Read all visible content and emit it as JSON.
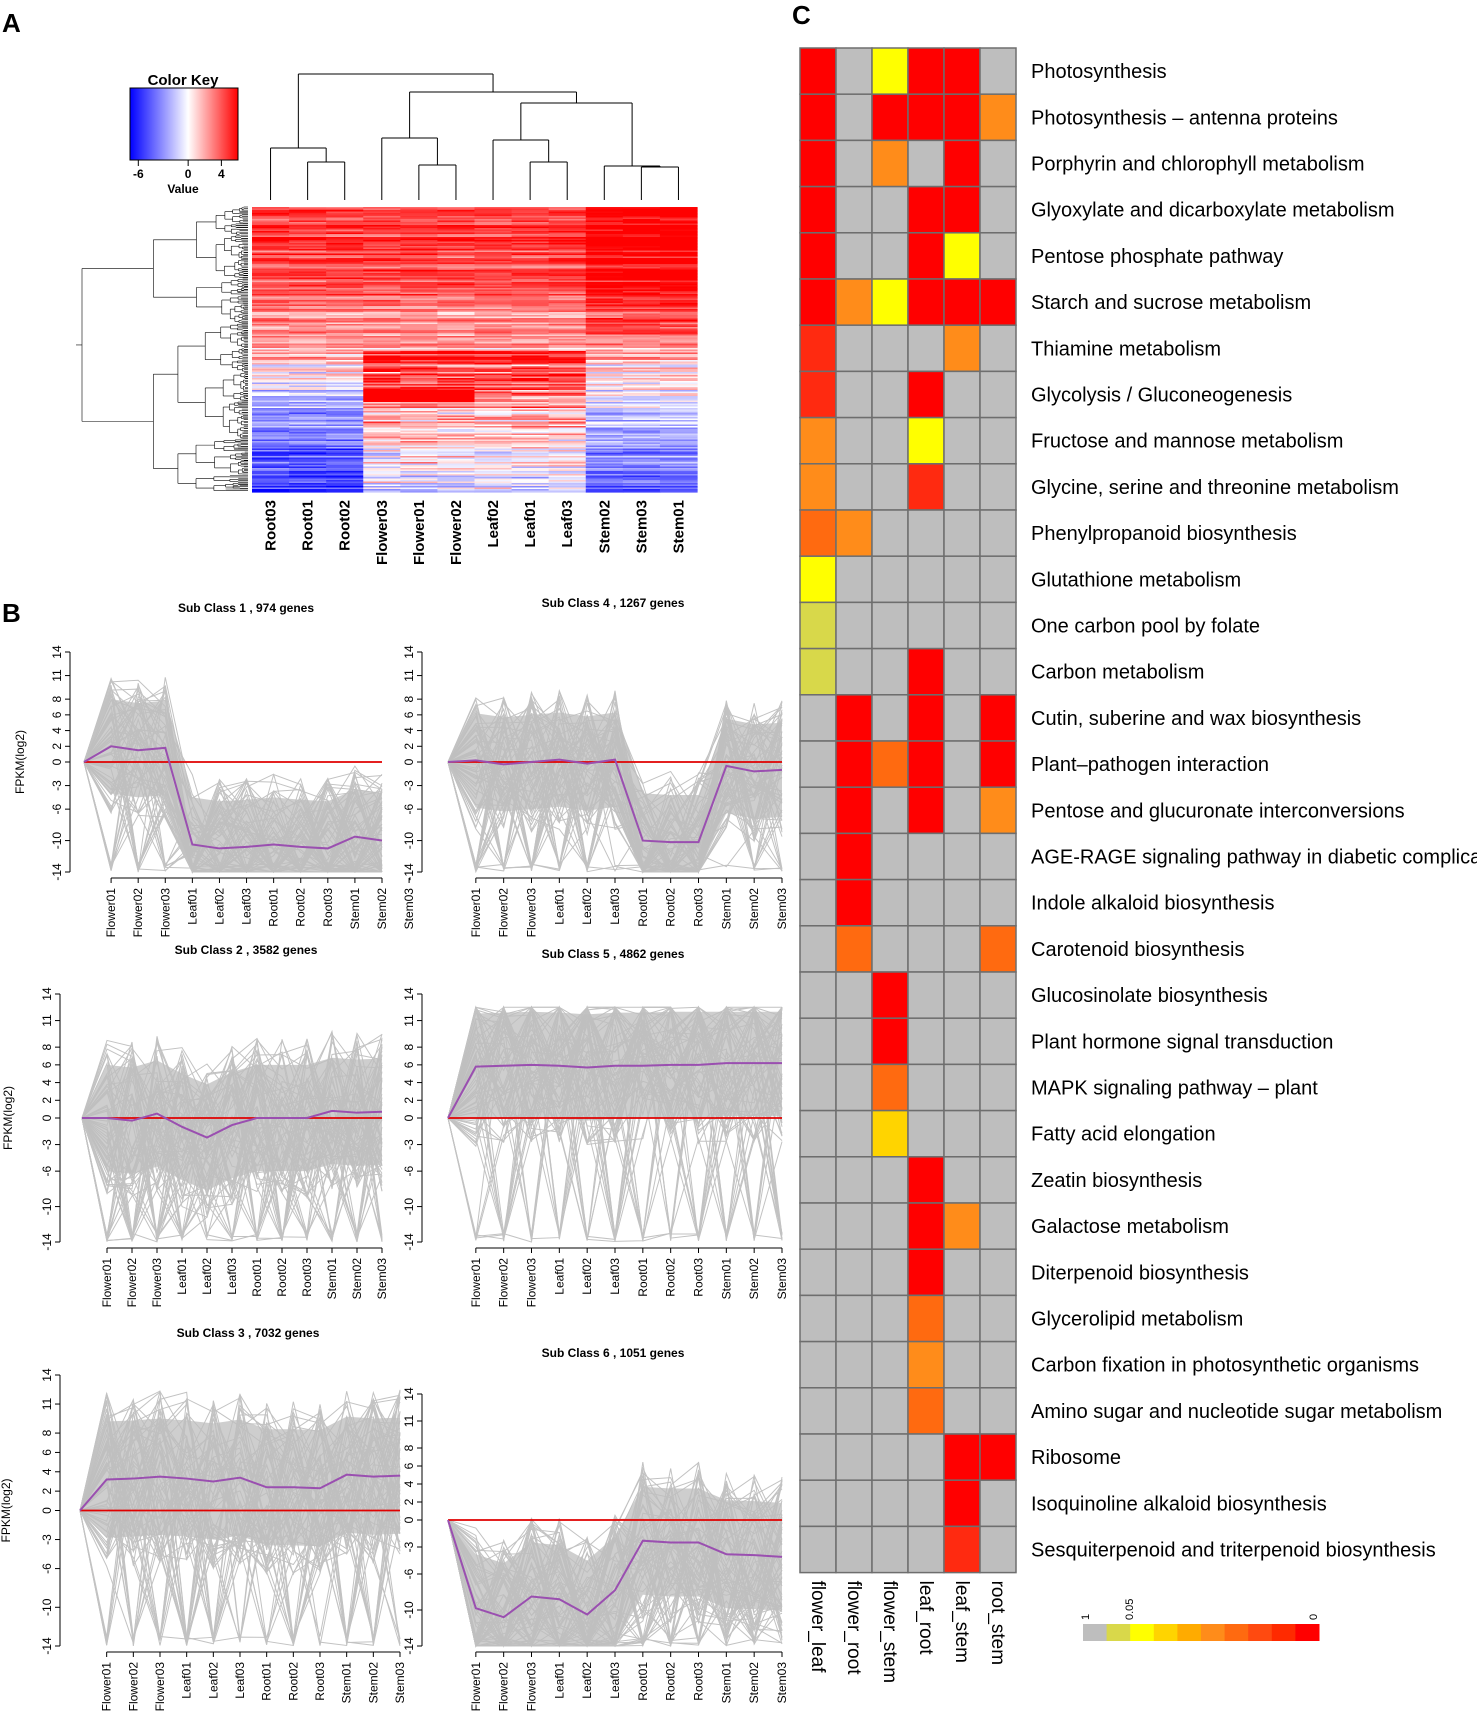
{
  "panels": {
    "a": "A",
    "b": "B",
    "c": "C"
  },
  "chart_data": [
    {
      "type": "heatmap",
      "panel": "A",
      "color_key": {
        "title": "Color Key",
        "label": "Value",
        "ticks": [
          "-6",
          "0",
          "4"
        ],
        "range": [
          -7,
          6
        ],
        "colors": {
          "low": "#0000ff",
          "mid": "#ffffff",
          "high": "#ff0000"
        }
      },
      "samples": [
        "Root03",
        "Root01",
        "Root02",
        "Flower03",
        "Flower01",
        "Flower02",
        "Leaf02",
        "Leaf01",
        "Leaf03",
        "Stem02",
        "Stem03",
        "Stem01"
      ]
    },
    {
      "type": "line",
      "panel": "B",
      "ylabel": "FPKM(log2)",
      "yticks": [
        14,
        11,
        8,
        6,
        4,
        2,
        0,
        -3,
        -6,
        -10,
        -14
      ],
      "ylim": [
        -14,
        14
      ],
      "x": [
        "Flower01",
        "Flower02",
        "Flower03",
        "Leaf01",
        "Leaf02",
        "Leaf03",
        "Root01",
        "Root02",
        "Root03",
        "Stem01",
        "Stem02",
        "Stem03"
      ],
      "x_display": [
        [
          "Flower01",
          "Flower02",
          "Flower03",
          "Leaf01",
          "Leaf02",
          "Leaf03",
          "Root01",
          "Root02",
          "Root03",
          "Stem01",
          "Stem02",
          "Stem03"
        ],
        [
          "Flower01",
          "Flower02",
          "Flower03",
          "Leaf01",
          "Leaf02",
          "Leaf03",
          "Root01",
          "Root02",
          "Root03",
          "Stem01",
          "Stem02",
          "Stem03"
        ],
        [
          "Flower01",
          "Flower02",
          "Flower03",
          "Leaf01",
          "Leaf02",
          "Leaf03",
          "Root01",
          "Root02",
          "Root03",
          "Stem01",
          "Stem02",
          "Stem03"
        ],
        [
          "Flower01",
          "Flower02",
          "Flower03",
          "Leaf01",
          "Leaf02",
          "Leaf03",
          "Root01",
          "Root02",
          "Root03",
          "Stem01",
          "Stem02",
          "Stem03"
        ],
        [
          "Flower01",
          "Flower02",
          "Flower03",
          "Leaf01",
          "Leaf02",
          "Leaf03",
          "Root01",
          "Root02",
          "Root03",
          "Stem01",
          "Stem02",
          "Stem03"
        ],
        [
          "Flower01",
          "Flower02",
          "Flower03",
          "Leaf01",
          "Leaf02",
          "Leaf03",
          "Root01",
          "Root02",
          "Root03",
          "Stem01",
          "Stem02",
          "Stem03"
        ]
      ],
      "subclasses": [
        {
          "title": "Sub Class  1  , 974  genes",
          "mean": [
            0,
            2,
            1.5,
            1.8,
            -10.5,
            -11,
            -10.8,
            -10.5,
            -10.8,
            -11,
            -9.5,
            -10
          ]
        },
        {
          "title": "Sub Class  4  , 1267  genes",
          "mean": [
            0,
            0.2,
            -0.3,
            0,
            0.3,
            -0.2,
            0.3,
            -10,
            -10.2,
            -10.2,
            -0.5,
            -1.2,
            -1
          ]
        },
        {
          "title": "Sub Class  2  , 3582  genes",
          "mean": [
            0,
            0,
            -0.3,
            0.5,
            -1,
            -2.2,
            -0.8,
            0,
            0,
            0,
            0.8,
            0.6,
            0.7
          ]
        },
        {
          "title": "Sub Class  5  , 4862  genes",
          "mean": [
            0,
            5.8,
            5.9,
            6,
            5.9,
            5.7,
            5.9,
            5.9,
            6,
            6,
            6.2,
            6.2,
            6.2
          ]
        },
        {
          "title": "Sub Class  3  , 7032  genes",
          "mean": [
            0,
            3.2,
            3.3,
            3.5,
            3.3,
            3,
            3.4,
            2.4,
            2.4,
            2.3,
            3.7,
            3.5,
            3.6
          ]
        },
        {
          "title": "Sub Class  6  , 1051  genes",
          "mean": [
            0,
            -9.8,
            -10.8,
            -8.5,
            -8.8,
            -10.5,
            -7.8,
            -2.3,
            -2.5,
            -2.5,
            -3.8,
            -3.9,
            -4.1
          ]
        }
      ]
    },
    {
      "type": "heatmap",
      "panel": "C",
      "columns": [
        "flower_leaf",
        "flower_root",
        "flower_stem",
        "leaf_root",
        "leaf_stem",
        "root_stem"
      ],
      "rows": [
        {
          "pathway": "Photosynthesis",
          "values": [
            0.0,
            null,
            0.05,
            0.0,
            0.0,
            null
          ]
        },
        {
          "pathway": "Photosynthesis – antenna proteins",
          "values": [
            0.0,
            null,
            0.0,
            0.0,
            0.0,
            0.03
          ]
        },
        {
          "pathway": "Porphyrin and chlorophyll metabolism",
          "values": [
            0.0,
            null,
            0.025,
            null,
            0.0,
            null
          ]
        },
        {
          "pathway": "Glyoxylate and dicarboxylate metabolism",
          "values": [
            0.0,
            null,
            null,
            0.0,
            0.0,
            null
          ]
        },
        {
          "pathway": "Pentose phosphate pathway",
          "values": [
            0.0,
            null,
            null,
            0.0,
            0.05,
            null
          ]
        },
        {
          "pathway": "Starch and sucrose metabolism",
          "values": [
            0.0,
            0.03,
            0.05,
            0.0,
            0.0,
            0.0
          ]
        },
        {
          "pathway": "Thiamine metabolism",
          "values": [
            0.008,
            null,
            null,
            null,
            0.025,
            null
          ]
        },
        {
          "pathway": "Glycolysis / Gluconeogenesis",
          "values": [
            0.008,
            null,
            null,
            0.0,
            null,
            null
          ]
        },
        {
          "pathway": "Fructose and mannose metabolism",
          "values": [
            0.025,
            null,
            null,
            0.05,
            null,
            null
          ]
        },
        {
          "pathway": "Glycine, serine and threonine metabolism",
          "values": [
            0.025,
            null,
            null,
            0.006,
            null,
            null
          ]
        },
        {
          "pathway": "Phenylpropanoid biosynthesis",
          "values": [
            0.02,
            0.025,
            null,
            null,
            null,
            null
          ]
        },
        {
          "pathway": "Glutathione metabolism",
          "values": [
            0.05,
            null,
            null,
            null,
            null,
            null
          ]
        },
        {
          "pathway": "One carbon pool by folate",
          "values": [
            0.2,
            null,
            null,
            null,
            null,
            null
          ]
        },
        {
          "pathway": "Carbon metabolism",
          "values": [
            0.2,
            null,
            null,
            0.0,
            null,
            null
          ]
        },
        {
          "pathway": "Cutin, suberine and wax biosynthesis",
          "values": [
            null,
            0.0,
            null,
            0.0,
            null,
            0.0
          ]
        },
        {
          "pathway": "Plant–pathogen interaction",
          "values": [
            null,
            0.0,
            0.02,
            0.0,
            null,
            0.0
          ]
        },
        {
          "pathway": "Pentose and glucuronate interconversions",
          "values": [
            null,
            0.0,
            null,
            0.0,
            null,
            0.025
          ]
        },
        {
          "pathway": "AGE-RAGE signaling pathway in diabetic complications",
          "values": [
            null,
            0.0,
            null,
            null,
            null,
            null
          ]
        },
        {
          "pathway": "Indole alkaloid biosynthesis",
          "values": [
            null,
            0.0,
            null,
            null,
            null,
            null
          ]
        },
        {
          "pathway": "Carotenoid biosynthesis",
          "values": [
            null,
            0.02,
            null,
            null,
            null,
            0.02
          ]
        },
        {
          "pathway": "Glucosinolate biosynthesis",
          "values": [
            null,
            null,
            0.0,
            null,
            null,
            null
          ]
        },
        {
          "pathway": "Plant hormone signal transduction",
          "values": [
            null,
            null,
            0.0,
            null,
            null,
            null
          ]
        },
        {
          "pathway": "MAPK signaling pathway – plant",
          "values": [
            null,
            null,
            0.02,
            null,
            null,
            null
          ]
        },
        {
          "pathway": "Fatty acid elongation",
          "values": [
            null,
            null,
            0.04,
            null,
            null,
            null
          ]
        },
        {
          "pathway": "Zeatin biosynthesis",
          "values": [
            null,
            null,
            null,
            0.0,
            null,
            null
          ]
        },
        {
          "pathway": "Galactose metabolism",
          "values": [
            null,
            null,
            null,
            0.0,
            0.025,
            null
          ]
        },
        {
          "pathway": "Diterpenoid biosynthesis",
          "values": [
            null,
            null,
            null,
            0.0,
            null,
            null
          ]
        },
        {
          "pathway": "Glycerolipid metabolism",
          "values": [
            null,
            null,
            null,
            0.02,
            null,
            null
          ]
        },
        {
          "pathway": "Carbon fixation in photosynthetic organisms",
          "values": [
            null,
            null,
            null,
            0.025,
            null,
            null
          ]
        },
        {
          "pathway": "Amino sugar and nucleotide sugar metabolism",
          "values": [
            null,
            null,
            null,
            0.015,
            null,
            null
          ]
        },
        {
          "pathway": "Ribosome",
          "values": [
            null,
            null,
            null,
            null,
            0.0,
            0.0
          ]
        },
        {
          "pathway": "Isoquinoline alkaloid biosynthesis",
          "values": [
            null,
            null,
            null,
            null,
            0.0,
            null
          ]
        },
        {
          "pathway": "Sesquiterpenoid and triterpenoid biosynthesis",
          "values": [
            null,
            null,
            null,
            null,
            0.006,
            null
          ]
        }
      ],
      "legend": {
        "ticks": [
          "1",
          "0.05",
          "0"
        ],
        "colors": [
          "#bebebe",
          "#d9d84a",
          "#ffff00",
          "#ffd400",
          "#ffab00",
          "#ff8c1a",
          "#ff6a10",
          "#ff4a10",
          "#ff2a00",
          "#ff0000"
        ]
      }
    }
  ]
}
